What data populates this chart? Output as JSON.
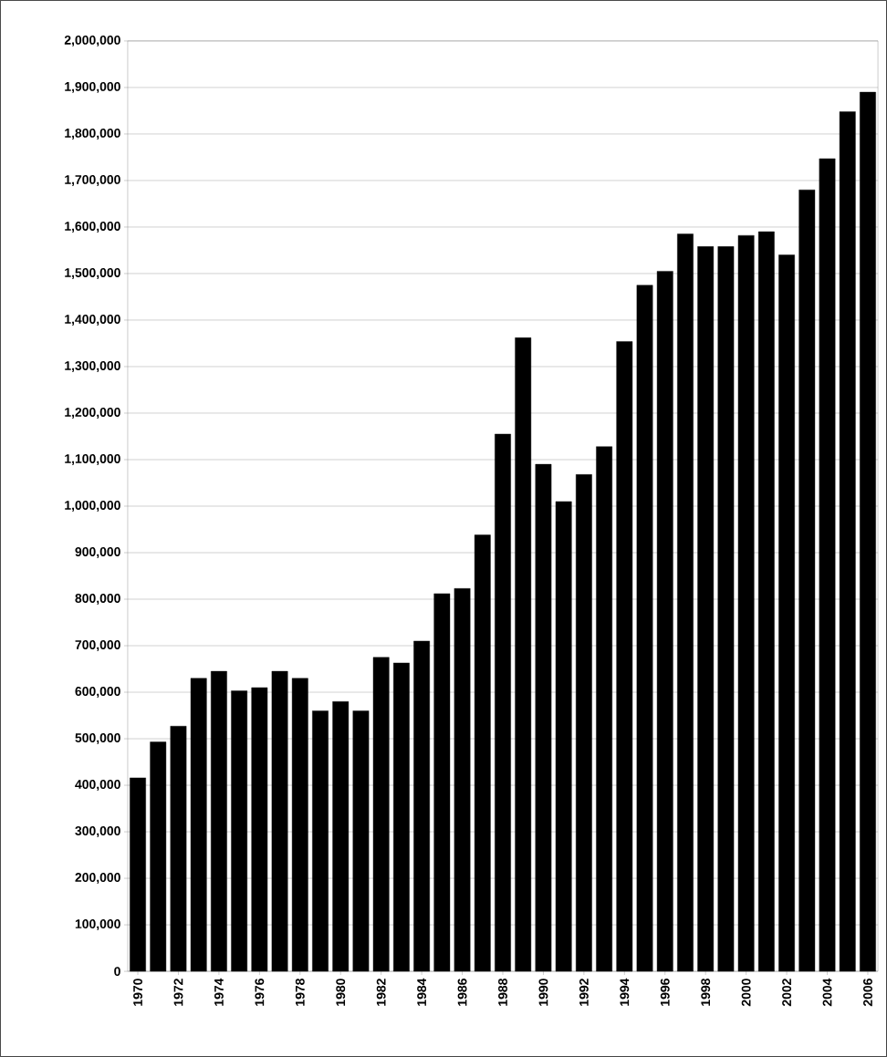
{
  "chart_data": {
    "type": "bar",
    "color": "#000000",
    "grid": "y",
    "categories": [
      "1970",
      null,
      "1972",
      null,
      "1974",
      null,
      "1976",
      null,
      "1978",
      null,
      "1980",
      null,
      "1982",
      null,
      "1984",
      null,
      "1986",
      null,
      "1988",
      null,
      "1990",
      null,
      "1992",
      null,
      "1994",
      null,
      "1996",
      null,
      "1998",
      null,
      "2000",
      null,
      "2002",
      null,
      "2004",
      null,
      "2006"
    ],
    "values": [
      416000,
      493000,
      527000,
      630000,
      645000,
      603000,
      610000,
      645000,
      630000,
      560000,
      580000,
      560000,
      675000,
      663000,
      710000,
      812000,
      823000,
      938000,
      1155000,
      1362000,
      1090000,
      1010000,
      1068000,
      1128000,
      1354000,
      1475000,
      1505000,
      1585000,
      1558000,
      1558000,
      1582000,
      1590000,
      1540000,
      1680000,
      1747000,
      1848000,
      1890000
    ],
    "ylim": [
      0,
      2000000
    ],
    "yticks": [
      {
        "value": 0,
        "label": "0"
      },
      {
        "value": 100000,
        "label": "100,000"
      },
      {
        "value": 200000,
        "label": "200,000"
      },
      {
        "value": 300000,
        "label": "300,000"
      },
      {
        "value": 400000,
        "label": "400,000"
      },
      {
        "value": 500000,
        "label": "500,000"
      },
      {
        "value": 600000,
        "label": "600,000"
      },
      {
        "value": 700000,
        "label": "700,000"
      },
      {
        "value": 800000,
        "label": "800,000"
      },
      {
        "value": 900000,
        "label": "900,000"
      },
      {
        "value": 1000000,
        "label": "1,000,000"
      },
      {
        "value": 1100000,
        "label": "1,100,000"
      },
      {
        "value": 1200000,
        "label": "1,200,000"
      },
      {
        "value": 1300000,
        "label": "1,300,000"
      },
      {
        "value": 1400000,
        "label": "1,400,000"
      },
      {
        "value": 1500000,
        "label": "1,500,000"
      },
      {
        "value": 1600000,
        "label": "1,600,000"
      },
      {
        "value": 1700000,
        "label": "1,700,000"
      },
      {
        "value": 1800000,
        "label": "1,800,000"
      },
      {
        "value": 1900000,
        "label": "1,900,000"
      },
      {
        "value": 2000000,
        "label": "2,000,000"
      }
    ]
  }
}
